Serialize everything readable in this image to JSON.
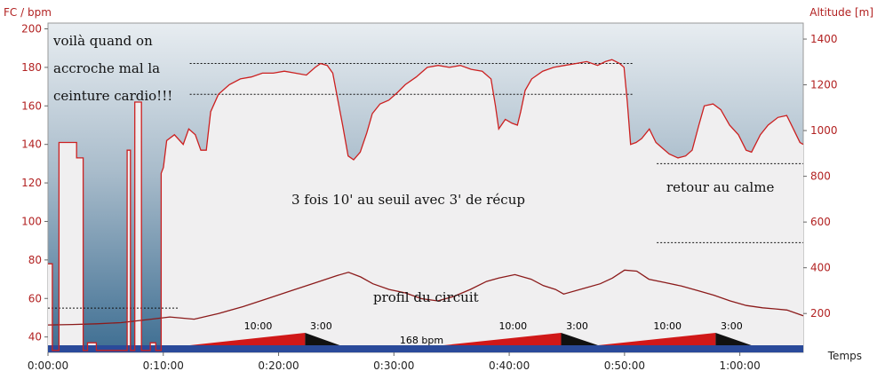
{
  "chart_data": {
    "type": "line",
    "y_left_label": "FC / bpm",
    "y_right_label": "Altitude [m]",
    "x_label": "Temps",
    "y_left_range": [
      32,
      203
    ],
    "y_right_range": [
      30,
      1470
    ],
    "x_range_min": [
      0,
      65.5
    ],
    "y_left_ticks": [
      "40",
      "60",
      "80",
      "100",
      "120",
      "140",
      "160",
      "180",
      "200"
    ],
    "y_right_ticks": [
      "200",
      "400",
      "600",
      "800",
      "1000",
      "1200",
      "1400"
    ],
    "x_ticks": [
      {
        "min": 0,
        "label": "0:00:00"
      },
      {
        "min": 10,
        "label": "0:10:00"
      },
      {
        "min": 20,
        "label": "0:20:00"
      },
      {
        "min": 30,
        "label": "0:30:00"
      },
      {
        "min": 40,
        "label": "0:40:00"
      },
      {
        "min": 50,
        "label": "0:50:00"
      },
      {
        "min": 60,
        "label": "1:00:00"
      }
    ],
    "colors": {
      "hr_line": "#cc2020",
      "altitude_line": "#8b1a1a",
      "zone_bar": "#2a4a9a",
      "interval_fill": "#d01818",
      "recovery_fill": "#111111"
    },
    "series": [
      {
        "name": "FC",
        "axis": "left",
        "points": [
          [
            0,
            78
          ],
          [
            0.4,
            78
          ],
          [
            0.4,
            33
          ],
          [
            1,
            33
          ],
          [
            1,
            141
          ],
          [
            2,
            141
          ],
          [
            2.6,
            141
          ],
          [
            2.6,
            133
          ],
          [
            3.2,
            133
          ],
          [
            3.2,
            33
          ],
          [
            3.6,
            33
          ],
          [
            3.6,
            37
          ],
          [
            4.4,
            37
          ],
          [
            4.4,
            33
          ],
          [
            7.2,
            33
          ],
          [
            7.2,
            137
          ],
          [
            7.5,
            137
          ],
          [
            7.5,
            33
          ],
          [
            7.9,
            33
          ],
          [
            7.9,
            162
          ],
          [
            8.5,
            162
          ],
          [
            8.5,
            33
          ],
          [
            9.3,
            33
          ],
          [
            9.3,
            37
          ],
          [
            9.8,
            37
          ],
          [
            9.8,
            33
          ],
          [
            10.3,
            33
          ],
          [
            10.3,
            125
          ],
          [
            10.5,
            128
          ],
          [
            10.8,
            142
          ],
          [
            11.5,
            145
          ],
          [
            12.3,
            140
          ],
          [
            12.8,
            148
          ],
          [
            13.4,
            145
          ],
          [
            13.9,
            137
          ],
          [
            14.4,
            137
          ],
          [
            14.8,
            157
          ],
          [
            15.5,
            166
          ],
          [
            16.5,
            171
          ],
          [
            17.5,
            174
          ],
          [
            18.5,
            175
          ],
          [
            19.5,
            177
          ],
          [
            20.5,
            177
          ],
          [
            21.5,
            178
          ],
          [
            22.5,
            177
          ],
          [
            23.5,
            176
          ],
          [
            24.3,
            180
          ],
          [
            24.8,
            182
          ],
          [
            25.4,
            181
          ],
          [
            25.9,
            177
          ],
          [
            26.3,
            165
          ],
          [
            26.8,
            150
          ],
          [
            27.3,
            134
          ],
          [
            27.8,
            132
          ],
          [
            28.4,
            136
          ],
          [
            29.0,
            146
          ],
          [
            29.5,
            156
          ],
          [
            30.2,
            161
          ],
          [
            31,
            163
          ],
          [
            31.8,
            167
          ],
          [
            32.5,
            171
          ],
          [
            33.5,
            175
          ],
          [
            34.5,
            180
          ],
          [
            35.5,
            181
          ],
          [
            36.5,
            180
          ],
          [
            37.5,
            181
          ],
          [
            38.5,
            179
          ],
          [
            39.5,
            178
          ],
          [
            40.3,
            174
          ],
          [
            40.7,
            160
          ],
          [
            41.0,
            148
          ],
          [
            41.6,
            153
          ],
          [
            42.2,
            151
          ],
          [
            42.7,
            150
          ],
          [
            43.0,
            157
          ],
          [
            43.4,
            168
          ],
          [
            44,
            174
          ],
          [
            45,
            178
          ],
          [
            46,
            180
          ],
          [
            47,
            181
          ],
          [
            48,
            182
          ],
          [
            49,
            183
          ],
          [
            50,
            181
          ],
          [
            50.7,
            183
          ],
          [
            51.3,
            184
          ],
          [
            52.0,
            182
          ],
          [
            52.4,
            180
          ],
          [
            52.7,
            162
          ],
          [
            53.0,
            140
          ],
          [
            53.5,
            141
          ],
          [
            54.0,
            143
          ],
          [
            54.7,
            148
          ],
          [
            55.3,
            141
          ],
          [
            55.9,
            138
          ],
          [
            56.5,
            135
          ],
          [
            57.3,
            133
          ],
          [
            58.0,
            134
          ],
          [
            58.6,
            137
          ],
          [
            59.2,
            150
          ],
          [
            59.7,
            160
          ],
          [
            60.5,
            161
          ],
          [
            61.2,
            158
          ],
          [
            62,
            150
          ],
          [
            62.8,
            145
          ],
          [
            63.5,
            137
          ],
          [
            64.0,
            136
          ],
          [
            64.8,
            145
          ],
          [
            65.5,
            150
          ],
          [
            66.4,
            154
          ],
          [
            67.2,
            155
          ],
          [
            67.8,
            148
          ],
          [
            68.4,
            141
          ],
          [
            68.7,
            140
          ]
        ]
      },
      {
        "name": "Altitude",
        "axis": "right",
        "points": [
          [
            0,
            150
          ],
          [
            3,
            152
          ],
          [
            6,
            155
          ],
          [
            9,
            160
          ],
          [
            12,
            172
          ],
          [
            15,
            185
          ],
          [
            18,
            175
          ],
          [
            21,
            200
          ],
          [
            24,
            230
          ],
          [
            27,
            265
          ],
          [
            30,
            300
          ],
          [
            33,
            335
          ],
          [
            35.5,
            365
          ],
          [
            37,
            380
          ],
          [
            38.5,
            360
          ],
          [
            40,
            330
          ],
          [
            42,
            305
          ],
          [
            44,
            290
          ],
          [
            46,
            265
          ],
          [
            48,
            255
          ],
          [
            50,
            275
          ],
          [
            52,
            305
          ],
          [
            54,
            340
          ],
          [
            55.5,
            355
          ],
          [
            57.5,
            370
          ],
          [
            59.5,
            350
          ],
          [
            61,
            322
          ],
          [
            62.5,
            305
          ],
          [
            63.5,
            285
          ],
          [
            66,
            310
          ],
          [
            68,
            330
          ],
          [
            69.5,
            355
          ],
          [
            71,
            390
          ],
          [
            72.5,
            385
          ],
          [
            74,
            350
          ],
          [
            76,
            335
          ],
          [
            78,
            320
          ],
          [
            80,
            300
          ],
          [
            82,
            280
          ],
          [
            84,
            255
          ],
          [
            86,
            235
          ],
          [
            88,
            225
          ],
          [
            89.5,
            220
          ],
          [
            91,
            215
          ],
          [
            93,
            190
          ]
        ]
      }
    ],
    "dotted_guides": [
      {
        "axis": "left",
        "value": 182,
        "x_from": 12.3,
        "x_to": 50.8
      },
      {
        "axis": "left",
        "value": 166,
        "x_from": 12.3,
        "x_to": 50.8
      },
      {
        "axis": "left",
        "value": 55,
        "x_from": 0,
        "x_to": 11.3
      },
      {
        "axis": "left",
        "value": 130,
        "x_from": 52.8,
        "x_to": 65.5
      },
      {
        "axis": "left",
        "value": 89,
        "x_from": 52.8,
        "x_to": 65.5
      }
    ],
    "zones": {
      "bar_label": "168 bpm",
      "intervals": [
        {
          "start": 12.3,
          "end": 22.3,
          "label": "10:00"
        },
        {
          "start": 34.3,
          "end": 44.5,
          "label": "10:00"
        },
        {
          "start": 47.7,
          "end": 57.9,
          "label": "10:00"
        }
      ],
      "recoveries": [
        {
          "start": 22.3,
          "end": 25.3,
          "label": "3:00"
        },
        {
          "start": 44.5,
          "end": 47.7,
          "label": "3:00"
        },
        {
          "start": 57.9,
          "end": 61.0,
          "label": "3:00"
        }
      ]
    },
    "annotations": {
      "top_left": [
        "voilà quand on",
        "accroche mal la",
        "ceinture cardio!!!"
      ],
      "center": "3 fois 10' au seuil avec 3' de récup",
      "right": "retour au calme",
      "profile": "profil du circuit"
    }
  }
}
